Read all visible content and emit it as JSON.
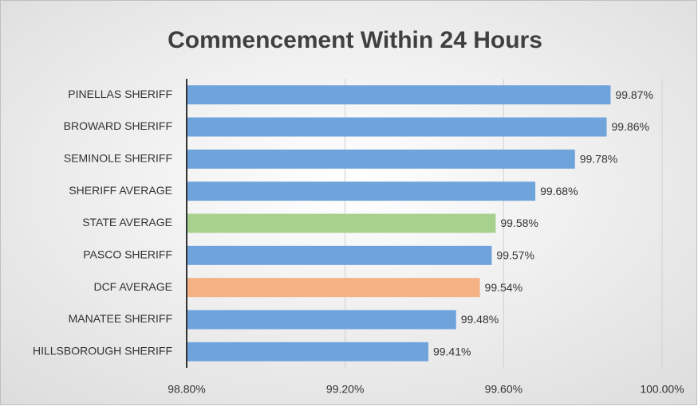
{
  "chart_data": {
    "type": "hbar",
    "title": "Commencement Within 24 Hours",
    "categories": [
      "PINELLAS SHERIFF",
      "BROWARD SHERIFF",
      "SEMINOLE SHERIFF",
      "SHERIFF AVERAGE",
      "STATE AVERAGE",
      "PASCO SHERIFF",
      "DCF AVERAGE",
      "MANATEE SHERIFF",
      "HILLSBOROUGH SHERIFF"
    ],
    "values": [
      99.87,
      99.86,
      99.78,
      99.68,
      99.58,
      99.57,
      99.54,
      99.48,
      99.41
    ],
    "value_labels": [
      "99.87%",
      "99.86%",
      "99.78%",
      "99.68%",
      "99.58%",
      "99.57%",
      "99.54%",
      "99.48%",
      "99.41%"
    ],
    "colors": [
      "#6fa3dc",
      "#6fa3dc",
      "#6fa3dc",
      "#6fa3dc",
      "#a9d18e",
      "#6fa3dc",
      "#f4b183",
      "#6fa3dc",
      "#6fa3dc"
    ],
    "xlim": [
      98.8,
      100.0
    ],
    "xticks": [
      {
        "value": 98.8,
        "label": "98.80%"
      },
      {
        "value": 99.2,
        "label": "99.20%"
      },
      {
        "value": 99.6,
        "label": "99.60%"
      },
      {
        "value": 100.0,
        "label": "100.00%"
      }
    ],
    "grid": true
  }
}
